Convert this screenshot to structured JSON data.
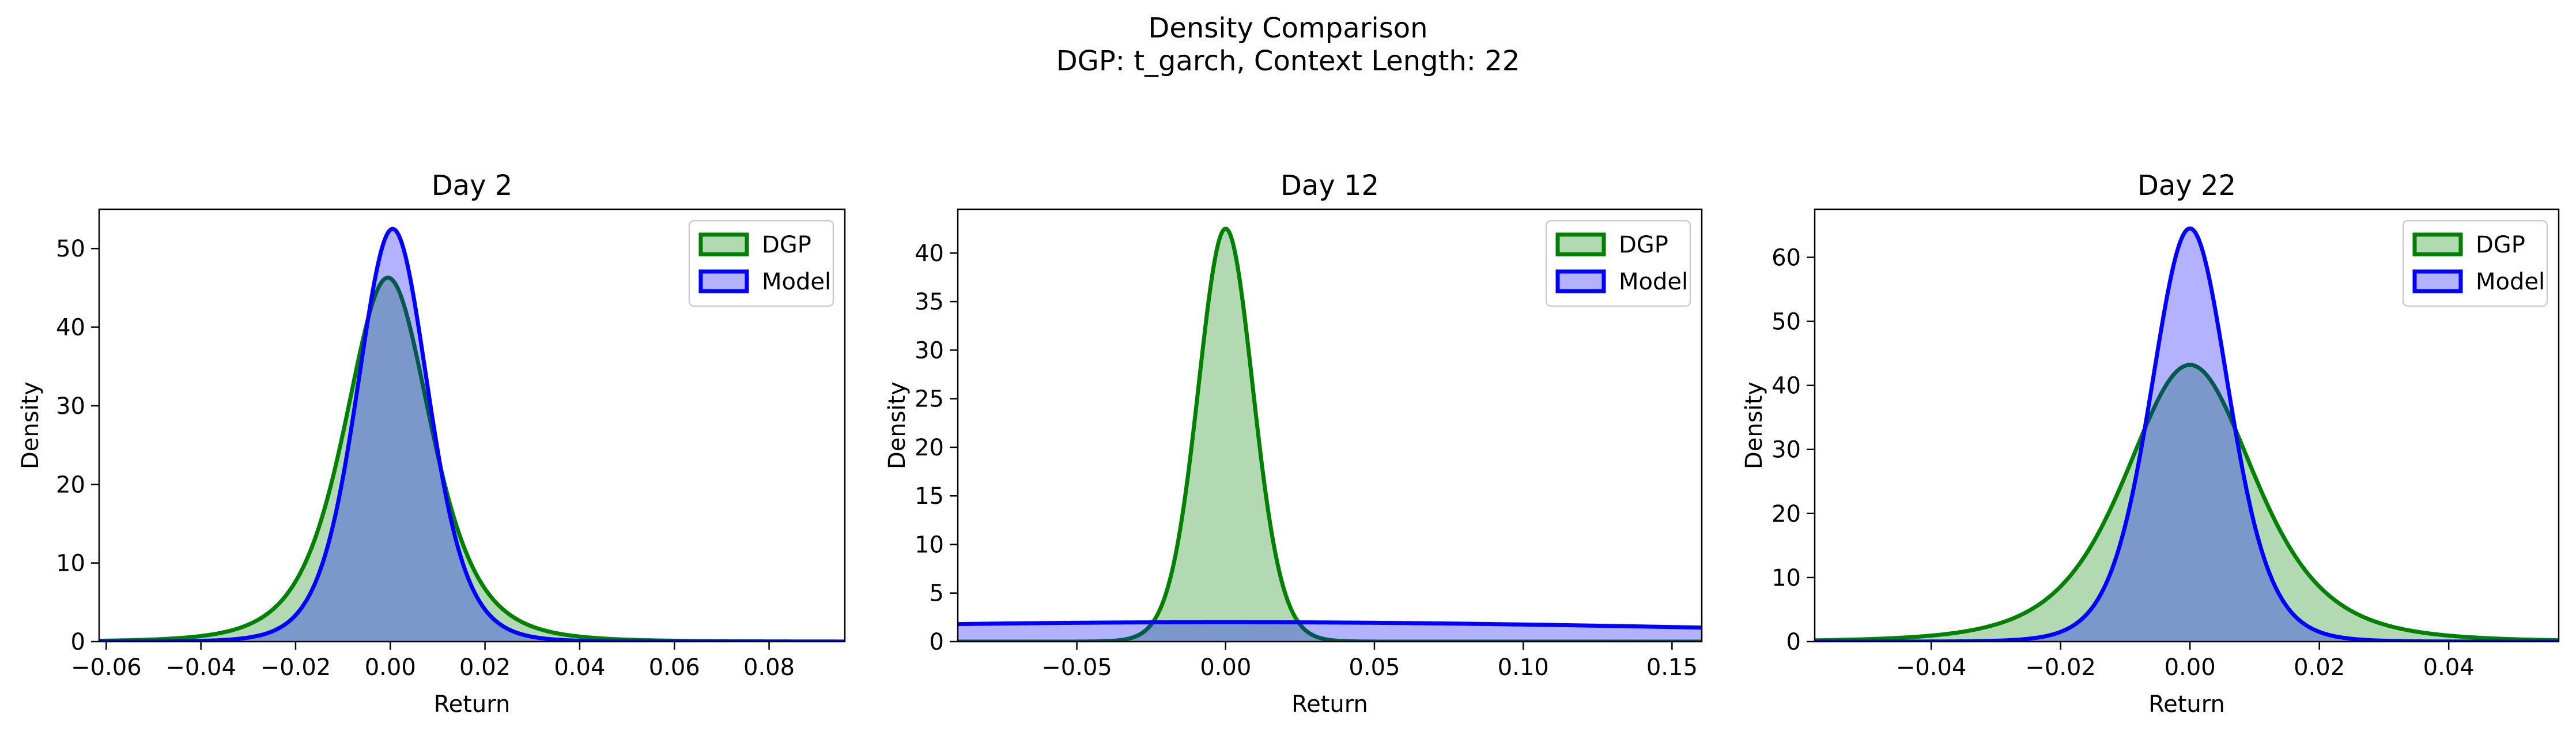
{
  "figure": {
    "title_line1": "Density Comparison",
    "title_line2": "DGP: t_garch, Context Length: 22"
  },
  "chart_data": [
    {
      "type": "area",
      "title": "Day 2",
      "xlabel": "Return",
      "ylabel": "Density",
      "xlim": [
        -0.0615,
        0.096
      ],
      "ylim": [
        0,
        55
      ],
      "xticks": [
        -0.06,
        -0.04,
        -0.02,
        0.0,
        0.02,
        0.04,
        0.06,
        0.08
      ],
      "xtick_labels": [
        "−0.06",
        "−0.04",
        "−0.02",
        "0.00",
        "0.02",
        "0.04",
        "0.06",
        "0.08"
      ],
      "yticks": [
        0,
        10,
        20,
        30,
        40,
        50
      ],
      "ytick_labels": [
        "0",
        "10",
        "20",
        "30",
        "40",
        "50"
      ],
      "legend": {
        "position": "upper right",
        "entries": [
          "DGP",
          "Model"
        ]
      },
      "series": [
        {
          "name": "DGP",
          "peak": 46.3,
          "center": -0.0005,
          "spread": 0.0095,
          "tail_df": 4,
          "color": "#008000",
          "fill": "#b2dab2"
        },
        {
          "name": "Model",
          "peak": 52.5,
          "center": 0.0005,
          "spread": 0.0078,
          "tail_df": 7,
          "color": "#0000ff",
          "fill": "#b2b2ff"
        }
      ]
    },
    {
      "type": "area",
      "title": "Day 12",
      "xlabel": "Return",
      "ylabel": "Density",
      "xlim": [
        -0.09,
        0.16
      ],
      "ylim": [
        0,
        44.5
      ],
      "xticks": [
        -0.05,
        0.0,
        0.05,
        0.1,
        0.15
      ],
      "xtick_labels": [
        "−0.05",
        "0.00",
        "0.05",
        "0.10",
        "0.15"
      ],
      "yticks": [
        0,
        5,
        10,
        15,
        20,
        25,
        30,
        35,
        40
      ],
      "ytick_labels": [
        "0",
        "5",
        "10",
        "15",
        "20",
        "25",
        "30",
        "35",
        "40"
      ],
      "legend": {
        "position": "upper right",
        "entries": [
          "DGP",
          "Model"
        ]
      },
      "series": [
        {
          "name": "DGP",
          "peak": 42.5,
          "center": 0.0,
          "spread": 0.0094,
          "tail_df": 20,
          "color": "#008000",
          "fill": "#b2dab2"
        },
        {
          "name": "Model",
          "peak": 2.0,
          "center": 0.0,
          "spread": 0.2,
          "tail_df": 30,
          "color": "#0000ff",
          "fill": "#b2b2ff"
        }
      ]
    },
    {
      "type": "area",
      "title": "Day 22",
      "xlabel": "Return",
      "ylabel": "Density",
      "xlim": [
        -0.058,
        0.057
      ],
      "ylim": [
        0,
        67.5
      ],
      "xticks": [
        -0.04,
        -0.02,
        0.0,
        0.02,
        0.04
      ],
      "xtick_labels": [
        "−0.04",
        "−0.02",
        "0.00",
        "0.02",
        "0.04"
      ],
      "yticks": [
        0,
        10,
        20,
        30,
        40,
        50,
        60
      ],
      "ytick_labels": [
        "0",
        "10",
        "20",
        "30",
        "40",
        "50",
        "60"
      ],
      "legend": {
        "position": "upper right",
        "entries": [
          "DGP",
          "Model"
        ]
      },
      "series": [
        {
          "name": "DGP",
          "peak": 43.2,
          "center": 0.0,
          "spread": 0.0105,
          "tail_df": 4,
          "color": "#008000",
          "fill": "#b2dab2"
        },
        {
          "name": "Model",
          "peak": 64.5,
          "center": 0.0,
          "spread": 0.0062,
          "tail_df": 8,
          "color": "#0000ff",
          "fill": "#b2b2ff"
        }
      ]
    }
  ]
}
